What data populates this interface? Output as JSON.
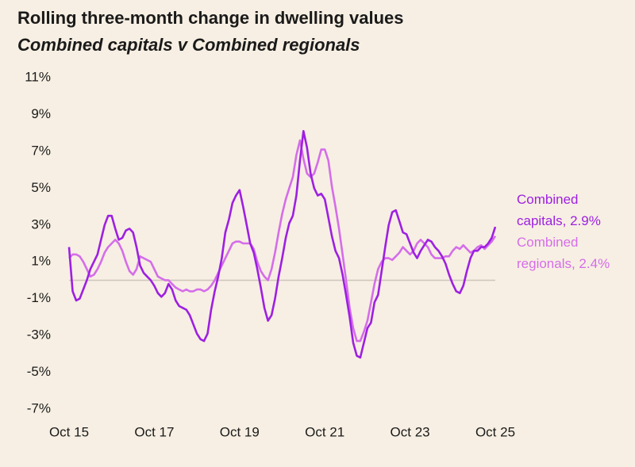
{
  "chart_data": {
    "type": "line",
    "title": "Rolling three-month change in dwelling values",
    "subtitle": "Combined capitals v Combined regionals",
    "categories": [
      "Oct 15",
      null,
      null,
      null,
      null,
      null,
      null,
      null,
      null,
      null,
      null,
      null,
      null,
      null,
      null,
      null,
      null,
      null,
      null,
      null,
      null,
      null,
      null,
      null,
      "Oct 17",
      null,
      null,
      null,
      null,
      null,
      null,
      null,
      null,
      null,
      null,
      null,
      null,
      null,
      null,
      null,
      null,
      null,
      null,
      null,
      null,
      null,
      null,
      null,
      "Oct 19",
      null,
      null,
      null,
      null,
      null,
      null,
      null,
      null,
      null,
      null,
      null,
      null,
      null,
      null,
      null,
      null,
      null,
      null,
      null,
      null,
      null,
      null,
      null,
      "Oct 21",
      null,
      null,
      null,
      null,
      null,
      null,
      null,
      null,
      null,
      null,
      null,
      null,
      null,
      null,
      null,
      null,
      null,
      null,
      null,
      null,
      null,
      null,
      null,
      "Oct 23",
      null,
      null,
      null,
      null,
      null,
      null,
      null,
      null,
      null,
      null,
      null,
      null,
      null,
      null,
      null,
      null,
      null,
      null,
      null,
      null,
      null,
      null,
      null,
      "Oct 25"
    ],
    "series": [
      {
        "name": "Combined capitals",
        "label": "Combined capitals, 2.9%",
        "color": "#9e1fe2",
        "values": [
          1.8,
          -0.6,
          -1.1,
          -1.0,
          -0.5,
          0.0,
          0.6,
          1.0,
          1.4,
          2.2,
          3.0,
          3.5,
          3.5,
          2.8,
          2.2,
          2.3,
          2.7,
          2.8,
          2.6,
          1.8,
          0.8,
          0.4,
          0.2,
          0.0,
          -0.3,
          -0.7,
          -0.9,
          -0.7,
          -0.2,
          -0.5,
          -1.1,
          -1.4,
          -1.5,
          -1.6,
          -1.9,
          -2.4,
          -2.9,
          -3.2,
          -3.3,
          -2.9,
          -1.6,
          -0.6,
          0.2,
          1.2,
          2.6,
          3.3,
          4.2,
          4.6,
          4.9,
          4.0,
          3.0,
          2.0,
          1.5,
          0.6,
          -0.4,
          -1.5,
          -2.2,
          -1.9,
          -1.0,
          0.2,
          1.2,
          2.3,
          3.1,
          3.5,
          4.6,
          6.5,
          8.1,
          7.2,
          5.8,
          5.0,
          4.6,
          4.7,
          4.4,
          3.4,
          2.4,
          1.6,
          1.2,
          0.3,
          -0.8,
          -2.0,
          -3.4,
          -4.1,
          -4.2,
          -3.4,
          -2.6,
          -2.3,
          -1.2,
          -0.8,
          0.5,
          1.8,
          3.0,
          3.7,
          3.8,
          3.2,
          2.6,
          2.5,
          2.0,
          1.5,
          1.2,
          1.6,
          1.9,
          2.2,
          2.1,
          1.8,
          1.6,
          1.3,
          0.9,
          0.3,
          -0.2,
          -0.6,
          -0.7,
          -0.3,
          0.5,
          1.2,
          1.6,
          1.6,
          1.8,
          1.8,
          2.0,
          2.3,
          2.9
        ]
      },
      {
        "name": "Combined regionals",
        "label": "Combined regionals, 2.4%",
        "color": "#d56de9",
        "values": [
          1.2,
          1.4,
          1.4,
          1.3,
          1.0,
          0.6,
          0.2,
          0.3,
          0.6,
          1.0,
          1.5,
          1.8,
          2.0,
          2.2,
          2.0,
          1.6,
          1.0,
          0.5,
          0.3,
          0.6,
          1.3,
          1.2,
          1.1,
          1.0,
          0.6,
          0.2,
          0.1,
          0.0,
          0.0,
          -0.2,
          -0.4,
          -0.5,
          -0.6,
          -0.5,
          -0.6,
          -0.6,
          -0.5,
          -0.5,
          -0.6,
          -0.5,
          -0.3,
          0.0,
          0.4,
          0.8,
          1.2,
          1.6,
          2.0,
          2.1,
          2.1,
          2.0,
          2.0,
          2.0,
          1.7,
          1.0,
          0.5,
          0.2,
          0.0,
          0.6,
          1.5,
          2.6,
          3.6,
          4.4,
          5.0,
          5.6,
          6.8,
          7.6,
          6.6,
          5.8,
          5.6,
          5.8,
          6.4,
          7.1,
          7.1,
          6.5,
          5.1,
          4.0,
          2.8,
          1.4,
          0.0,
          -1.5,
          -2.6,
          -3.3,
          -3.3,
          -2.8,
          -2.2,
          -1.2,
          -0.2,
          0.6,
          1.0,
          1.2,
          1.2,
          1.1,
          1.3,
          1.5,
          1.8,
          1.6,
          1.4,
          1.6,
          2.0,
          2.2,
          2.0,
          1.8,
          1.4,
          1.2,
          1.2,
          1.2,
          1.3,
          1.3,
          1.6,
          1.8,
          1.7,
          1.9,
          1.7,
          1.5,
          1.6,
          1.8,
          1.9,
          1.7,
          1.9,
          2.1,
          2.4
        ]
      }
    ],
    "ylim": [
      -7,
      11
    ],
    "yticks": [
      {
        "value": -7,
        "label": "-7%"
      },
      {
        "value": -5,
        "label": "-5%"
      },
      {
        "value": -3,
        "label": "-3%"
      },
      {
        "value": -1,
        "label": "-1%"
      },
      {
        "value": 1,
        "label": "1%"
      },
      {
        "value": 3,
        "label": "3%"
      },
      {
        "value": 5,
        "label": "5%"
      },
      {
        "value": 7,
        "label": "7%"
      },
      {
        "value": 9,
        "label": "9%"
      },
      {
        "value": 11,
        "label": "11%"
      }
    ],
    "hline": 0,
    "grid": false
  }
}
